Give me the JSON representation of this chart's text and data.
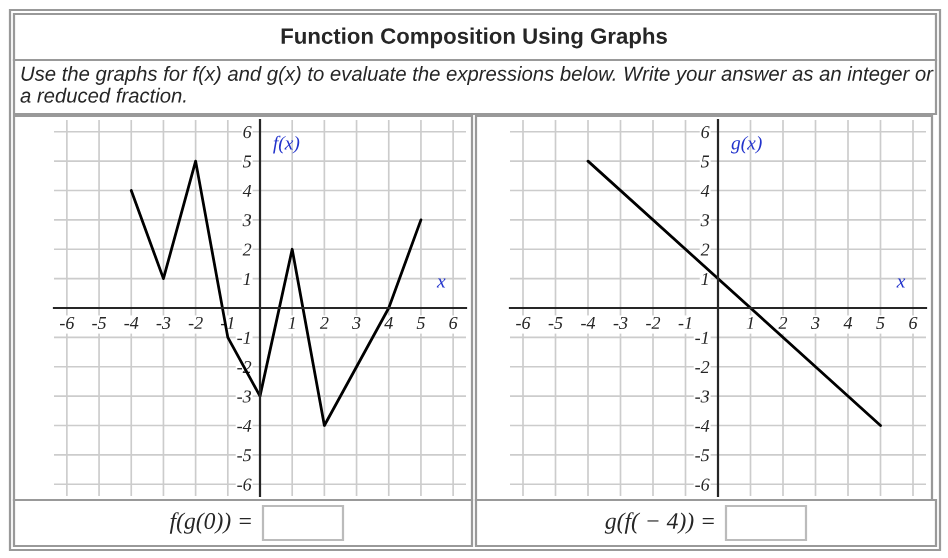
{
  "chart_data": [
    {
      "type": "line",
      "title": "Function Composition Using Graphs",
      "subtitle": "Use the graphs for f(x) and g(x) to evaluate the expressions below. Write your answer as an integer or a reduced fraction.",
      "xlabel": "x",
      "ylabel": "f(x)",
      "x": [
        -4,
        -3,
        -2,
        -1,
        0,
        1,
        2,
        4,
        5
      ],
      "series": [
        {
          "color": "#000000",
          "values": [
            4,
            1,
            5,
            -1,
            -3,
            2,
            -4,
            0,
            3
          ]
        }
      ],
      "xlim": [
        -6.4,
        6.4
      ],
      "ylim": [
        -6.4,
        6.4
      ],
      "xticks": [
        -6,
        -5,
        -4,
        -3,
        -2,
        -1,
        1,
        2,
        3,
        4,
        5,
        6
      ],
      "yticks": [
        -6,
        -5,
        -4,
        -3,
        -2,
        -1,
        1,
        2,
        3,
        4,
        5,
        6
      ],
      "grid": true,
      "annotations": [
        "f(g(0)) ="
      ]
    },
    {
      "type": "line",
      "xlabel": "x",
      "ylabel": "g(x)",
      "x": [
        -4,
        5
      ],
      "series": [
        {
          "color": "#000000",
          "values": [
            5,
            -4
          ]
        }
      ],
      "xlim": [
        -6.4,
        6.4
      ],
      "ylim": [
        -6.4,
        6.4
      ],
      "xticks": [
        -6,
        -5,
        -4,
        -3,
        -2,
        -1,
        1,
        2,
        3,
        4,
        5,
        6
      ],
      "yticks": [
        -6,
        -5,
        -4,
        -3,
        -2,
        -1,
        1,
        2,
        3,
        4,
        5,
        6
      ],
      "grid": true,
      "annotations": [
        "g(f( − 4)) ="
      ]
    }
  ]
}
